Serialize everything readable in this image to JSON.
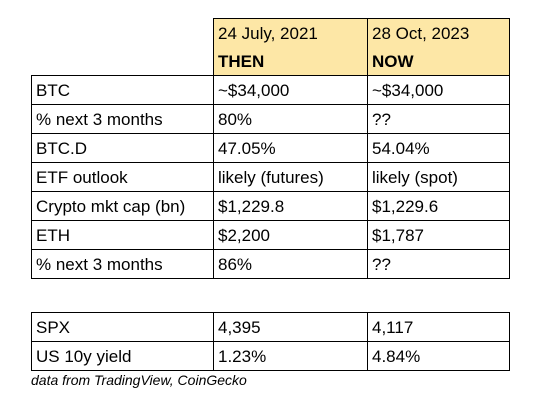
{
  "header": {
    "then_date": "24 July, 2021",
    "now_date": "28 Oct, 2023",
    "then_label": "THEN",
    "now_label": "NOW"
  },
  "rows": [
    {
      "metric": "BTC",
      "then": "~$34,000",
      "now": "~$34,000"
    },
    {
      "metric": "% next 3 months",
      "then": "80%",
      "now": "??"
    },
    {
      "metric": "BTC.D",
      "then": "47.05%",
      "now": "54.04%"
    },
    {
      "metric": "ETF outlook",
      "then": "likely (futures)",
      "now": "likely (spot)"
    },
    {
      "metric": "Crypto mkt cap (bn)",
      "then": "$1,229.8",
      "now": "$1,229.6"
    },
    {
      "metric": "ETH",
      "then": "$2,200",
      "now": "$1,787"
    },
    {
      "metric": "% next 3 months",
      "then": "86%",
      "now": "??"
    }
  ],
  "secondary_rows": [
    {
      "metric": "SPX",
      "then": "4,395",
      "now": "4,117"
    },
    {
      "metric": "US 10y yield",
      "then": "1.23%",
      "now": "4.84%"
    }
  ],
  "footnote": "data from TradingView, CoinGecko"
}
